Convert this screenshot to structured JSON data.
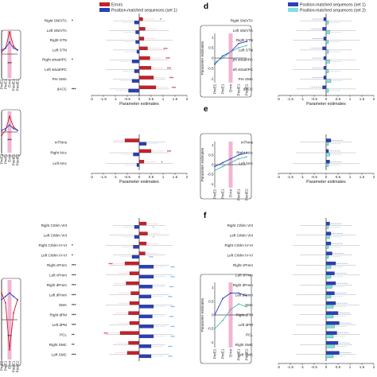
{
  "chart_data": [
    {
      "type": "bar",
      "orientation": "horizontal",
      "panel": "a",
      "series": [
        {
          "name": "Errors",
          "color": "#c8202a"
        },
        {
          "name": "Position-matched sequences (set 1)",
          "color": "#2a3fb8"
        }
      ],
      "xlabel": "Parameter estimates",
      "xlim": [
        -2,
        2
      ],
      "xticks": [
        "-2",
        "-1.5",
        "-1",
        "-0.5",
        "0",
        "0.5",
        "1",
        "1.5",
        "2"
      ],
      "rows": [
        {
          "label": "Right SN/VTA",
          "values": [
            0.15,
            -0.2
          ],
          "sig": "*"
        },
        {
          "label": "Left SN/VTA",
          "values": [
            0.25,
            -0.15
          ],
          "sig": ""
        },
        {
          "label": "Right STN",
          "values": [
            0.2,
            -0.15
          ],
          "sig": ""
        },
        {
          "label": "Left STN",
          "values": [
            0.35,
            -0.1
          ],
          "sig": "***"
        },
        {
          "label": "Right striat/IPC",
          "values": [
            0.45,
            -0.3
          ],
          "sig": "***"
        },
        {
          "label": "Left striat/IPC",
          "values": [
            0.5,
            -0.2
          ],
          "sig": "***"
        },
        {
          "label": "Pre SMA",
          "values": [
            0.6,
            -0.3
          ],
          "sig": "***"
        },
        {
          "label": "dACC",
          "values": [
            0.7,
            -0.45
          ],
          "sig": "***"
        }
      ],
      "row_marks_left": [
        "*",
        "",
        "",
        "",
        "*",
        "",
        "",
        "***"
      ]
    },
    {
      "type": "bar",
      "orientation": "horizontal",
      "panel": "b",
      "xlabel": "Parameter estimates",
      "xlim": [
        -2,
        2
      ],
      "xticks": [
        "-2",
        "-1.5",
        "-1",
        "-0.5",
        "0",
        "0.5",
        "1",
        "1.5",
        "2"
      ],
      "rows": [
        {
          "label": "mThms",
          "values": [
            -0.6,
            0.3
          ],
          "sig": ""
        },
        {
          "label": "Right NAc",
          "values": [
            0.5,
            -0.25
          ],
          "sig": "***"
        },
        {
          "label": "Left NAc",
          "values": [
            0.2,
            -0.1
          ],
          "sig": "*"
        }
      ]
    },
    {
      "type": "bar",
      "orientation": "horizontal",
      "panel": "c",
      "xlim": [
        -2,
        2
      ],
      "rows": [
        {
          "label": "Right Crblm VIII",
          "values": [
            0.3,
            -0.2
          ],
          "sig_right": "*"
        },
        {
          "label": "Left Crblm VIII",
          "values": [
            0.35,
            -0.2
          ],
          "sig_right": "*"
        },
        {
          "label": "Right Crblm IV-VI",
          "values": [
            0.3,
            -0.25
          ],
          "sig_right": ""
        },
        {
          "label": "Left Crblm IV-VI",
          "values": [
            0.25,
            -0.3
          ],
          "sig_right": "***"
        },
        {
          "label": "Right vPmm",
          "values": [
            -0.6,
            0.6
          ],
          "sig_left": "***",
          "sig_right": "***"
        },
        {
          "label": "Left vPmm",
          "values": [
            -0.4,
            0.6
          ],
          "sig_right": "***"
        },
        {
          "label": "Right dPmm",
          "values": [
            -0.55,
            0.55
          ],
          "sig_right": "***"
        },
        {
          "label": "Left dPmm",
          "values": [
            -0.35,
            0.5
          ],
          "sig_right": "***"
        },
        {
          "label": "SMA",
          "values": [
            -0.4,
            0.6
          ],
          "sig_right": "***"
        },
        {
          "label": "Right dPM",
          "values": [
            -0.45,
            0.55
          ],
          "sig_right": "***"
        },
        {
          "label": "Left dPM",
          "values": [
            -0.4,
            0.6
          ],
          "sig_right": "***"
        },
        {
          "label": "PCL",
          "values": [
            -0.8,
            0.6
          ],
          "sig_left": "***",
          "sig_right": "***"
        },
        {
          "label": "Right SMC",
          "values": [
            -0.45,
            0.5
          ],
          "sig_right": "***"
        },
        {
          "label": "Left SMC",
          "values": [
            -0.5,
            0.5
          ],
          "sig_right": "***"
        }
      ],
      "row_marks_left": [
        "",
        "",
        "*",
        "*",
        "***",
        "***",
        "***",
        "***",
        "***",
        "***",
        "***",
        "**",
        "**",
        "***"
      ]
    },
    {
      "type": "bar",
      "orientation": "horizontal",
      "panel": "d",
      "series": [
        {
          "name": "Position-matched sequences (set 1)",
          "color": "#2a3fb8"
        },
        {
          "name": "Position-matched sequences (set 2)",
          "color": "#7fe0dc"
        }
      ],
      "xlabel": "Parameter estimates",
      "xlim": [
        -2,
        2
      ],
      "xticks": [
        "-2",
        "-1.5",
        "-1",
        "-0.5",
        "0",
        "0.5",
        "1",
        "1.5",
        "2"
      ],
      "rows": [
        {
          "label": "Right SN/VTA",
          "values": [
            -0.1,
            0.1
          ]
        },
        {
          "label": "Left SN/VTA",
          "values": [
            -0.15,
            0.15
          ]
        },
        {
          "label": "Right STN",
          "values": [
            -0.1,
            0.1
          ]
        },
        {
          "label": "Left STN",
          "values": [
            -0.15,
            0.1
          ]
        },
        {
          "label": "Right striat/IPC",
          "values": [
            -0.1,
            0.15
          ]
        },
        {
          "label": "Left striat/IPC",
          "values": [
            -0.1,
            0.1
          ]
        },
        {
          "label": "Pre SMA",
          "values": [
            -0.1,
            0.2
          ]
        },
        {
          "label": "dACC",
          "values": [
            -0.15,
            0.1
          ]
        }
      ]
    },
    {
      "type": "bar",
      "orientation": "horizontal",
      "panel": "e",
      "xlabel": "Parameter estimates",
      "xlim": [
        -2,
        2
      ],
      "xticks": [
        "-2",
        "-1.5",
        "-1",
        "-0.5",
        "0",
        "0.5",
        "1",
        "1.5",
        "2"
      ],
      "rows": [
        {
          "label": "mThms",
          "values": [
            0.2,
            0.1
          ]
        },
        {
          "label": "Right NAc",
          "values": [
            0.1,
            0.15
          ]
        },
        {
          "label": "Left NAc",
          "values": [
            0.15,
            0.1
          ]
        }
      ]
    },
    {
      "type": "bar",
      "orientation": "horizontal",
      "panel": "f",
      "xlim": [
        -2,
        2
      ],
      "xticks": [
        "-2",
        "-1.5",
        "-1",
        "-0.5",
        "0",
        "0.5",
        "1",
        "1.5",
        "2"
      ],
      "rows": [
        {
          "label": "Right Crblm VIII",
          "values": [
            0.15,
            0.1
          ]
        },
        {
          "label": "Left Crblm VIII",
          "values": [
            0.2,
            0.15
          ]
        },
        {
          "label": "Right Crblm IV-VI",
          "values": [
            0.2,
            0.1
          ]
        },
        {
          "label": "Left Crblm IV-VI",
          "values": [
            0.25,
            0.1
          ]
        },
        {
          "label": "Right vPmm",
          "values": [
            0.4,
            0.2
          ]
        },
        {
          "label": "Left vPmm",
          "values": [
            0.35,
            0.2
          ]
        },
        {
          "label": "Right dPmm",
          "values": [
            0.4,
            0.25
          ]
        },
        {
          "label": "Left dPmm",
          "values": [
            0.35,
            0.2
          ]
        },
        {
          "label": "SMA",
          "values": [
            0.4,
            0.3
          ]
        },
        {
          "label": "Right dPM",
          "values": [
            0.5,
            0.3
          ]
        },
        {
          "label": "Left dPM",
          "values": [
            0.55,
            0.35
          ]
        },
        {
          "label": "PCL",
          "values": [
            0.45,
            0.3
          ]
        },
        {
          "label": "Right SMC",
          "values": [
            0.5,
            0.35
          ]
        },
        {
          "label": "Left SMC",
          "values": [
            0.55,
            0.3
          ]
        }
      ]
    }
  ],
  "insets": [
    {
      "panel": "a",
      "ylabel": "",
      "yticks": [],
      "xticks": [
        "PreE2",
        "PreE1",
        "Error",
        "PostE1",
        "PostE2"
      ],
      "mark": "***",
      "red": [
        0.1,
        0.3,
        1.1,
        0.4,
        0.2
      ],
      "blue": [
        0.2,
        0.3,
        0.6,
        0.3,
        0.2
      ]
    },
    {
      "panel": "b",
      "ylabel": "",
      "yticks": [],
      "xticks": [
        "PreE2",
        "PreE1",
        "Error",
        "PostE1",
        "PostE2"
      ],
      "mark": "***",
      "red": [
        -0.2,
        0.1,
        0.9,
        0.3,
        0.1
      ],
      "blue": [
        0.1,
        0.2,
        0.4,
        0.2,
        0.1
      ]
    },
    {
      "panel": "c",
      "ylabel": "",
      "yticks": [],
      "xticks": [
        "PreE2",
        "PreE1",
        "Error",
        "PostE1",
        "PostE2"
      ],
      "mark": "***",
      "red": [
        0.8,
        0.5,
        -0.9,
        0.2,
        0.6
      ],
      "blue": [
        0.6,
        0.7,
        0.8,
        0.7,
        0.6
      ]
    },
    {
      "panel": "d",
      "ylabel": "Parameter estimates",
      "yticks": [
        "1",
        "0.5",
        "0",
        "-0.5",
        "-1"
      ],
      "xticks": [
        "PreE2",
        "PreE1",
        "Error",
        "PostE1",
        "PostE2"
      ],
      "blue": [
        -0.3,
        0.1,
        0.3,
        0.7,
        0.8
      ],
      "cyan": [
        -0.2,
        0.0,
        0.3,
        0.5,
        0.6
      ]
    },
    {
      "panel": "e",
      "ylabel": "Parameter estimates",
      "yticks": [
        "1",
        "0.5",
        "0",
        "-0.5",
        "-1"
      ],
      "xticks": [
        "PreE2",
        "PreE1",
        "Error",
        "PostE1",
        "PostE2"
      ],
      "blue": [
        -0.1,
        0.1,
        0.3,
        0.5,
        0.6
      ],
      "cyan": [
        -0.3,
        -0.1,
        0.1,
        0.3,
        0.4
      ]
    },
    {
      "panel": "f",
      "ylabel": "Parameter estimates",
      "yticks": [
        "1",
        "0.5",
        "0",
        "-0.5",
        "-1"
      ],
      "xticks": [
        "PreE2",
        "PreE1",
        "Error",
        "PostE1",
        "PostE2"
      ],
      "blue": [
        0.0,
        0.6,
        0.8,
        0.8,
        0.7
      ],
      "cyan": [
        -0.5,
        -0.2,
        0.2,
        0.4,
        0.3
      ]
    }
  ],
  "colors": {
    "red": "#c8202a",
    "blue": "#2a3fb8",
    "cyan": "#7fe0dc",
    "pink": "#f2b5d4",
    "light_red": "#f07c7c",
    "light_blue": "#7fa8f0"
  }
}
